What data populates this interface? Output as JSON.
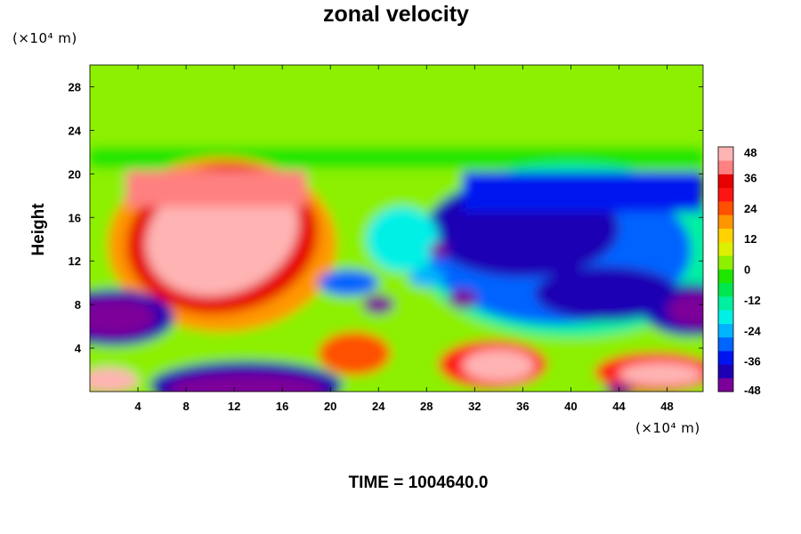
{
  "chart_data": {
    "type": "heatmap",
    "title": "zonal velocity",
    "ylabel": "Height",
    "xlabel": "",
    "x_unit": "(×10⁴ m)",
    "y_unit": "(×10⁴ m)",
    "xlim": [
      0,
      51
    ],
    "ylim": [
      0,
      30
    ],
    "x_ticks": [
      4,
      8,
      12,
      16,
      20,
      24,
      28,
      32,
      36,
      40,
      44,
      48
    ],
    "y_ticks": [
      4,
      8,
      12,
      16,
      20,
      24,
      28
    ],
    "colorbar": {
      "range": [
        -48,
        48
      ],
      "ticks": [
        48,
        36,
        24,
        12,
        0,
        -12,
        -24,
        -36,
        -48
      ],
      "colors": [
        "#7b0099",
        "#1e00b4",
        "#0014f0",
        "#0064ff",
        "#00b4ff",
        "#00f0e6",
        "#00f0a0",
        "#00e650",
        "#1ee600",
        "#8cf000",
        "#dcf000",
        "#ffd200",
        "#ff9600",
        "#ff5000",
        "#ff1414",
        "#e60000",
        "#ff8080",
        "#ffb4b4"
      ]
    },
    "features": [
      {
        "region": "upper band",
        "x": [
          0,
          51
        ],
        "y": [
          21,
          30
        ],
        "value": 2
      },
      {
        "region": "left jet core",
        "x": [
          6,
          18
        ],
        "y": [
          9,
          19
        ],
        "value": 50
      },
      {
        "region": "right easterly",
        "x": [
          26,
          51
        ],
        "y": [
          6,
          20
        ],
        "value": -38
      },
      {
        "region": "lower-left vortex",
        "x": [
          0,
          5
        ],
        "y": [
          5,
          8
        ],
        "value": -50
      },
      {
        "region": "lower-right vortex",
        "x": [
          48,
          51
        ],
        "y": [
          6,
          9
        ],
        "value": -50
      },
      {
        "region": "bottom trough",
        "x": [
          8,
          18
        ],
        "y": [
          0,
          2
        ],
        "value": -50
      },
      {
        "region": "surface jet",
        "x": [
          30,
          38
        ],
        "y": [
          1,
          4
        ],
        "value": 50
      },
      {
        "region": "surface jet 2",
        "x": [
          42,
          51
        ],
        "y": [
          0,
          3
        ],
        "value": 45
      }
    ]
  },
  "footer": {
    "time_label": "TIME = 1004640.0"
  }
}
